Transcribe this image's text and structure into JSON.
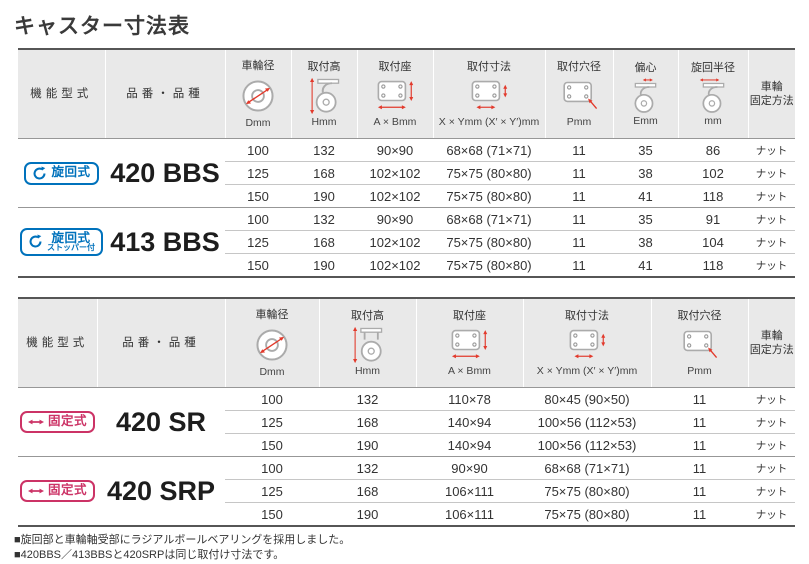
{
  "title": "キャスター寸法表",
  "notes": [
    "■旋回部と車輪軸受部にラジアルボールベアリングを採用しました。",
    "■420BBS／413BBSと420SRPは同じ取付け寸法です。"
  ],
  "colors": {
    "swivel_blue": "#0072bc",
    "fixed_pink": "#cc3366",
    "dimension_arrow_red": "#e23a2c",
    "header_gray": "#e9e9e9"
  },
  "tables": [
    {
      "name": "swivel-casters",
      "columns": [
        {
          "key": "function-type",
          "label": "機能型式"
        },
        {
          "key": "product",
          "label": "品番・品種"
        },
        {
          "key": "wheel-diameter",
          "label": "車輪径",
          "unit": "Dmm",
          "icon": "wheel-diameter-icon"
        },
        {
          "key": "mount-height",
          "label": "取付高",
          "unit": "Hmm",
          "icon": "caster-height-swivel-icon"
        },
        {
          "key": "mount-seat",
          "label": "取付座",
          "unit": "A × Bmm",
          "icon": "plate-seat-icon"
        },
        {
          "key": "mount-dimensions",
          "label": "取付寸法",
          "unit": "X × Ymm (X′ × Y′)mm",
          "icon": "plate-dimensions-icon"
        },
        {
          "key": "mount-hole-diameter",
          "label": "取付穴径",
          "unit": "Pmm",
          "icon": "plate-hole-icon"
        },
        {
          "key": "eccentricity",
          "label": "偏心",
          "unit": "Emm",
          "icon": "eccentric-caster-icon"
        },
        {
          "key": "swivel-radius",
          "label": "旋回半径",
          "unit": "mm",
          "icon": "swivel-radius-icon"
        },
        {
          "key": "wheel-fixing-method",
          "label": "車輪\n固定方法"
        }
      ],
      "groups": [
        {
          "badge": {
            "label": "旋回式",
            "sub": null,
            "style": "swivel",
            "glyph": "rotate-icon"
          },
          "product": "420 BBS",
          "rows": [
            [
              "100",
              "132",
              "90×90",
              "68×68 (71×71)",
              "11",
              "35",
              "86",
              "ナット"
            ],
            [
              "125",
              "168",
              "102×102",
              "75×75 (80×80)",
              "11",
              "38",
              "102",
              "ナット"
            ],
            [
              "150",
              "190",
              "102×102",
              "75×75 (80×80)",
              "11",
              "41",
              "118",
              "ナット"
            ]
          ]
        },
        {
          "badge": {
            "label": "旋回式",
            "sub": "ストッパー付",
            "style": "swivel",
            "glyph": "rotate-icon"
          },
          "product": "413 BBS",
          "rows": [
            [
              "100",
              "132",
              "90×90",
              "68×68 (71×71)",
              "11",
              "35",
              "91",
              "ナット"
            ],
            [
              "125",
              "168",
              "102×102",
              "75×75 (80×80)",
              "11",
              "38",
              "104",
              "ナット"
            ],
            [
              "150",
              "190",
              "102×102",
              "75×75 (80×80)",
              "11",
              "41",
              "118",
              "ナット"
            ]
          ]
        }
      ]
    },
    {
      "name": "fixed-casters",
      "columns": [
        {
          "key": "function-type",
          "label": "機能型式"
        },
        {
          "key": "product",
          "label": "品番・品種"
        },
        {
          "key": "wheel-diameter",
          "label": "車輪径",
          "unit": "Dmm",
          "icon": "wheel-diameter-icon"
        },
        {
          "key": "mount-height",
          "label": "取付高",
          "unit": "Hmm",
          "icon": "caster-height-fixed-icon"
        },
        {
          "key": "mount-seat",
          "label": "取付座",
          "unit": "A × Bmm",
          "icon": "plate-seat-icon"
        },
        {
          "key": "mount-dimensions",
          "label": "取付寸法",
          "unit": "X × Ymm (X′ × Y′)mm",
          "icon": "plate-dimensions-icon"
        },
        {
          "key": "mount-hole-diameter",
          "label": "取付穴径",
          "unit": "Pmm",
          "icon": "plate-hole-icon"
        },
        {
          "key": "wheel-fixing-method",
          "label": "車輪\n固定方法"
        }
      ],
      "groups": [
        {
          "badge": {
            "label": "固定式",
            "sub": null,
            "style": "fixed",
            "glyph": "double-arrow-icon"
          },
          "product": "420 SR",
          "rows": [
            [
              "100",
              "132",
              "110×78",
              "80×45 (90×50)",
              "11",
              "ナット"
            ],
            [
              "125",
              "168",
              "140×94",
              "100×56 (112×53)",
              "11",
              "ナット"
            ],
            [
              "150",
              "190",
              "140×94",
              "100×56 (112×53)",
              "11",
              "ナット"
            ]
          ]
        },
        {
          "badge": {
            "label": "固定式",
            "sub": null,
            "style": "fixed",
            "glyph": "double-arrow-icon"
          },
          "product": "420 SRP",
          "rows": [
            [
              "100",
              "132",
              "90×90",
              "68×68 (71×71)",
              "11",
              "ナット"
            ],
            [
              "125",
              "168",
              "106×111",
              "75×75 (80×80)",
              "11",
              "ナット"
            ],
            [
              "150",
              "190",
              "106×111",
              "75×75 (80×80)",
              "11",
              "ナット"
            ]
          ]
        }
      ]
    }
  ]
}
